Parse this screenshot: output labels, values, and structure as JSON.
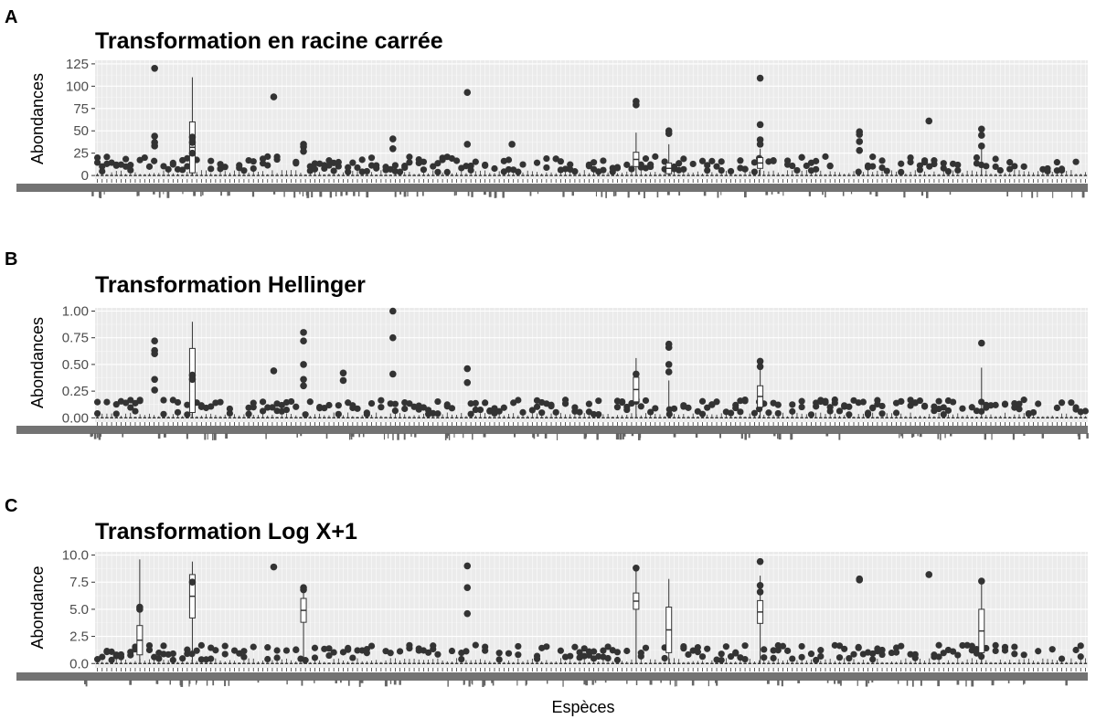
{
  "chart_data": [
    {
      "panel": "A",
      "type": "boxplot",
      "title": "Transformation en racine carrée",
      "ylabel": "Abondances",
      "xlabel": "",
      "ylim": [
        -4,
        129
      ],
      "yticks": [
        0,
        25,
        50,
        75,
        100,
        125
      ],
      "grid": true,
      "highlights": [
        {
          "x": 0.06,
          "outliers": [
            120,
            44,
            37,
            33
          ]
        },
        {
          "x": 0.098,
          "box": [
            3,
            60
          ],
          "whisker": 110,
          "outliers": [
            43,
            37,
            25
          ]
        },
        {
          "x": 0.18,
          "outliers": [
            88
          ]
        },
        {
          "x": 0.21,
          "outliers": [
            35,
            32,
            27
          ]
        },
        {
          "x": 0.3,
          "outliers": [
            41,
            30
          ]
        },
        {
          "x": 0.375,
          "outliers": [
            93,
            35
          ]
        },
        {
          "x": 0.42,
          "outliers": [
            35
          ]
        },
        {
          "x": 0.545,
          "box": [
            10,
            26
          ],
          "whisker": 48,
          "outliers": [
            83,
            79
          ]
        },
        {
          "x": 0.578,
          "box": [
            2,
            14
          ],
          "whisker": 35,
          "outliers": [
            50,
            47
          ]
        },
        {
          "x": 0.67,
          "box": [
            8,
            20
          ],
          "whisker": 30,
          "outliers": [
            109,
            57,
            40,
            35
          ]
        },
        {
          "x": 0.77,
          "outliers": [
            49,
            46,
            38,
            28
          ]
        },
        {
          "x": 0.84,
          "outliers": [
            61
          ]
        },
        {
          "x": 0.893,
          "whisker": 30,
          "outliers": [
            52,
            45,
            33
          ]
        }
      ]
    },
    {
      "panel": "B",
      "type": "boxplot",
      "title": "Transformation Hellinger",
      "ylabel": "Abondances",
      "xlabel": "",
      "ylim": [
        -0.04,
        1.03
      ],
      "yticks": [
        0.0,
        0.25,
        0.5,
        0.75,
        1.0
      ],
      "tick_labels": [
        "0.00",
        "0.25",
        "0.50",
        "0.75",
        "1.00"
      ],
      "grid": true,
      "highlights": [
        {
          "x": 0.06,
          "outliers": [
            0.72,
            0.63,
            0.6,
            0.36,
            0.26
          ]
        },
        {
          "x": 0.098,
          "box": [
            0.05,
            0.65
          ],
          "whisker": 0.9,
          "outliers": [
            0.4,
            0.36
          ]
        },
        {
          "x": 0.18,
          "outliers": [
            0.44
          ]
        },
        {
          "x": 0.21,
          "outliers": [
            0.8,
            0.72,
            0.5,
            0.36,
            0.3
          ]
        },
        {
          "x": 0.25,
          "outliers": [
            0.42,
            0.35
          ]
        },
        {
          "x": 0.3,
          "outliers": [
            1.0,
            0.75,
            0.41
          ]
        },
        {
          "x": 0.375,
          "outliers": [
            0.46,
            0.33
          ]
        },
        {
          "x": 0.545,
          "box": [
            0.15,
            0.38
          ],
          "whisker": 0.56,
          "outliers": [
            0.41
          ]
        },
        {
          "x": 0.578,
          "whisker": 0.35,
          "outliers": [
            0.69,
            0.66,
            0.5,
            0.43
          ]
        },
        {
          "x": 0.67,
          "box": [
            0.1,
            0.3
          ],
          "whisker": 0.46,
          "outliers": [
            0.53,
            0.48
          ]
        },
        {
          "x": 0.893,
          "whisker": 0.47,
          "outliers": [
            0.7
          ]
        }
      ]
    },
    {
      "panel": "C",
      "type": "boxplot",
      "title": "Transformation Log X+1",
      "ylabel": "Abondance",
      "xlabel": "Espèces",
      "ylim": [
        -0.4,
        10.3
      ],
      "yticks": [
        0.0,
        2.5,
        5.0,
        7.5,
        10.0
      ],
      "tick_labels": [
        "0.0",
        "2.5",
        "5.0",
        "7.5",
        "10.0"
      ],
      "grid": true,
      "highlights": [
        {
          "x": 0.045,
          "box": [
            0.8,
            3.5
          ],
          "whisker": 9.6,
          "outliers": [
            5.2,
            5.0
          ]
        },
        {
          "x": 0.098,
          "box": [
            4.2,
            8.2
          ],
          "whisker": 9.4,
          "outliers": [
            7.5
          ]
        },
        {
          "x": 0.18,
          "outliers": [
            8.9
          ]
        },
        {
          "x": 0.21,
          "box": [
            3.8,
            6.0
          ],
          "whisker": 6.6,
          "outliers": [
            7.0,
            6.8
          ]
        },
        {
          "x": 0.375,
          "outliers": [
            9.0,
            7.0,
            4.6
          ]
        },
        {
          "x": 0.545,
          "box": [
            5.0,
            6.5
          ],
          "whisker": 8.6,
          "outliers": [
            8.8
          ]
        },
        {
          "x": 0.578,
          "box": [
            1.0,
            5.2
          ],
          "whisker": 7.8
        },
        {
          "x": 0.67,
          "box": [
            3.7,
            5.8
          ],
          "whisker": 8.1,
          "outliers": [
            9.4,
            7.2,
            6.6
          ]
        },
        {
          "x": 0.77,
          "outliers": [
            7.8,
            7.7
          ]
        },
        {
          "x": 0.84,
          "outliers": [
            8.2
          ]
        },
        {
          "x": 0.893,
          "box": [
            1.0,
            5.0
          ],
          "whisker": 7.9,
          "outliers": [
            7.6
          ]
        }
      ]
    }
  ]
}
